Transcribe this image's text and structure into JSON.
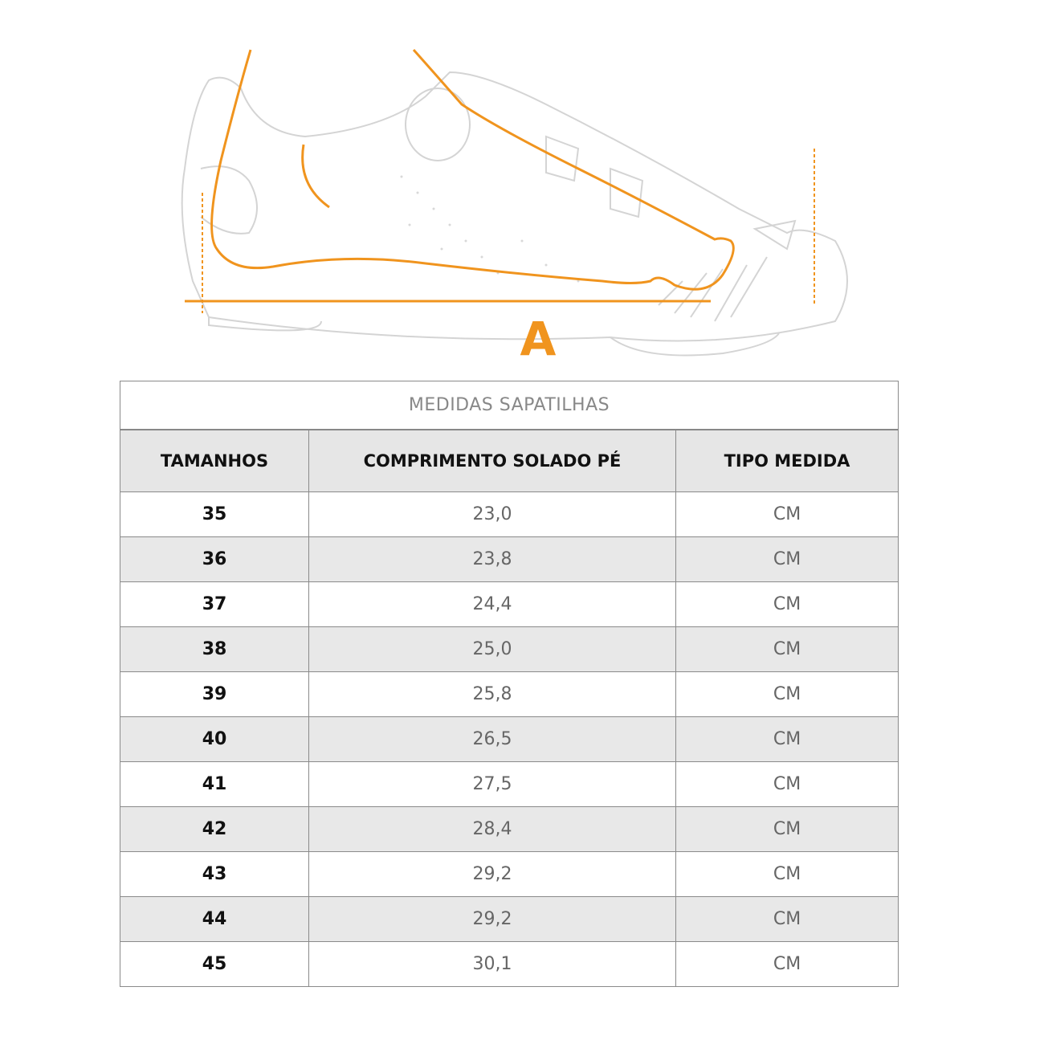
{
  "illustration": {
    "label": "A",
    "accent_color": "#f0941e",
    "icon": "shoe-foot-measurement-diagram"
  },
  "table": {
    "title": "MEDIDAS SAPATILHAS",
    "headers": [
      "TAMANHOS",
      "COMPRIMENTO SOLADO PÉ",
      "TIPO MEDIDA"
    ],
    "rows": [
      [
        "35",
        "23,0",
        "CM"
      ],
      [
        "36",
        "23,8",
        "CM"
      ],
      [
        "37",
        "24,4",
        "CM"
      ],
      [
        "38",
        "25,0",
        "CM"
      ],
      [
        "39",
        "25,8",
        "CM"
      ],
      [
        "40",
        "26,5",
        "CM"
      ],
      [
        "41",
        "27,5",
        "CM"
      ],
      [
        "42",
        "28,4",
        "CM"
      ],
      [
        "43",
        "29,2",
        "CM"
      ],
      [
        "44",
        "29,2",
        "CM"
      ],
      [
        "45",
        "30,1",
        "CM"
      ]
    ]
  }
}
